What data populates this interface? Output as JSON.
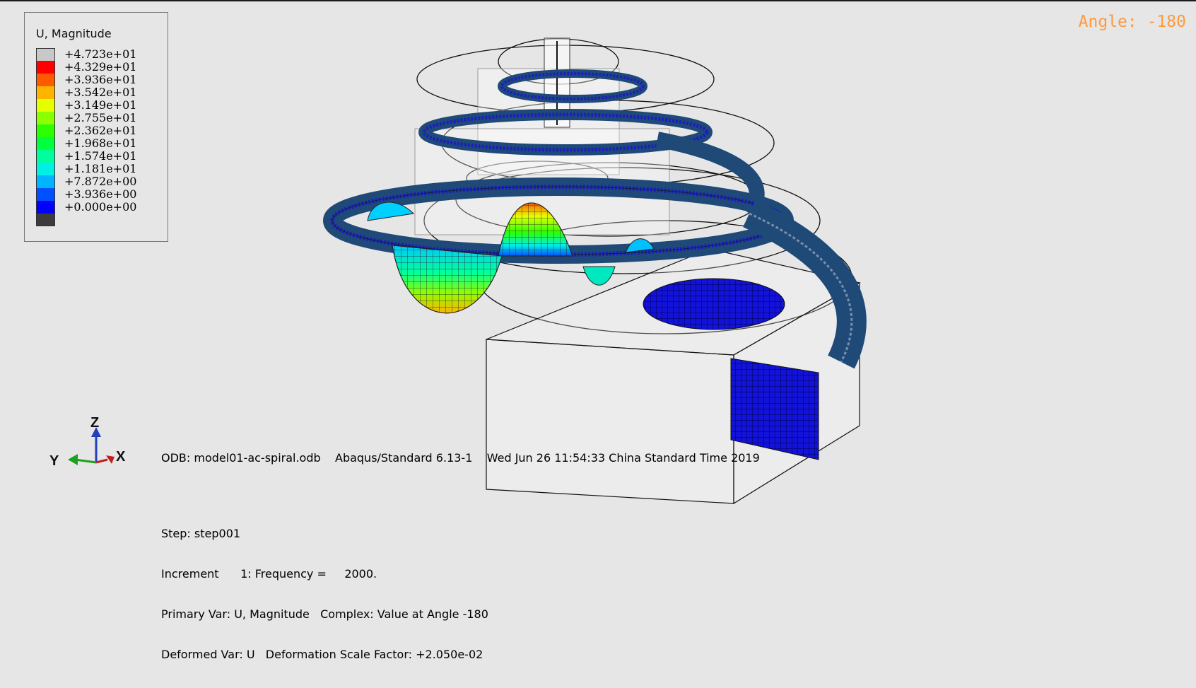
{
  "legend": {
    "title": "U, Magnitude",
    "entries": [
      {
        "value": "+4.723e+01",
        "color": "#c8c8c8"
      },
      {
        "value": "+4.329e+01",
        "color": "#ff0000"
      },
      {
        "value": "+3.936e+01",
        "color": "#ff5a00"
      },
      {
        "value": "+3.542e+01",
        "color": "#ffb400"
      },
      {
        "value": "+3.149e+01",
        "color": "#e6ff00"
      },
      {
        "value": "+2.755e+01",
        "color": "#8cff00"
      },
      {
        "value": "+2.362e+01",
        "color": "#2dff00"
      },
      {
        "value": "+1.968e+01",
        "color": "#00ff3c"
      },
      {
        "value": "+1.574e+01",
        "color": "#00ff9c"
      },
      {
        "value": "+1.181e+01",
        "color": "#00f0e6"
      },
      {
        "value": "+7.872e+00",
        "color": "#00b4ff"
      },
      {
        "value": "+3.936e+00",
        "color": "#0050ff"
      },
      {
        "value": "+0.000e+00",
        "color": "#0000ff"
      }
    ],
    "bottom_swatch_color": "#3c3c3c"
  },
  "angle_label": "Angle: -180",
  "info": {
    "odb_line": "ODB: model01-ac-spiral.odb    Abaqus/Standard 6.13-1    Wed Jun 26 11:54:33 China Standard Time 2019",
    "step_line": "Step: step001",
    "increment_line": "Increment      1: Frequency =     2000.",
    "primary_line": "Primary Var: U, Magnitude   Complex: Value at Angle -180",
    "deformed_line": "Deformed Var: U   Deformation Scale Factor: +2.050e-02"
  },
  "triad": {
    "z": "Z",
    "y": "Y",
    "x": "X",
    "z_color": "#1f3fbf",
    "y_color": "#1fa01f",
    "x_color": "#c01f1f"
  }
}
